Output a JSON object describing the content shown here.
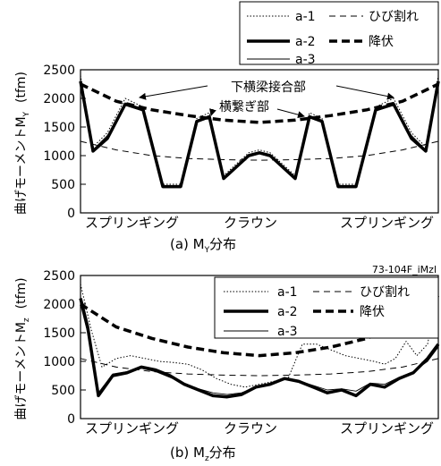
{
  "figure_id": "73-104F_iMzl",
  "chart_data": [
    {
      "type": "line",
      "caption": {
        "prefix": "(a) M",
        "sub": "Y",
        "suffix": "分布"
      },
      "ylabel": {
        "main": "曲げモーメントM",
        "sub": "Y",
        "unit": "(tfm)"
      },
      "ylim": [
        0,
        2500
      ],
      "y_ticks": [
        "0",
        "500",
        "1000",
        "1500",
        "2000",
        "2500"
      ],
      "x_categories": [
        "スプリンギング",
        "クラウン",
        "スプリンギング"
      ],
      "xlim": [
        0,
        1
      ],
      "grid": false,
      "legend_placement": "top-right",
      "annotations": [
        "下横梁接合部",
        "横繋ぎ部"
      ],
      "series": [
        {
          "name": "a-1",
          "style": "dotted",
          "x": [
            0,
            0.035,
            0.075,
            0.125,
            0.175,
            0.23,
            0.28,
            0.325,
            0.36,
            0.4,
            0.47,
            0.5,
            0.53,
            0.6,
            0.64,
            0.675,
            0.72,
            0.77,
            0.825,
            0.875,
            0.925,
            0.965,
            1.0
          ],
          "y": [
            2400,
            1150,
            1400,
            2000,
            1850,
            500,
            500,
            1650,
            1750,
            650,
            1050,
            1100,
            1050,
            650,
            1750,
            1650,
            500,
            500,
            1850,
            2000,
            1400,
            1150,
            2400
          ]
        },
        {
          "name": "a-2",
          "style": "thick-solid",
          "x": [
            0,
            0.035,
            0.075,
            0.125,
            0.175,
            0.23,
            0.28,
            0.325,
            0.36,
            0.4,
            0.47,
            0.5,
            0.53,
            0.6,
            0.64,
            0.675,
            0.72,
            0.77,
            0.825,
            0.875,
            0.925,
            0.965,
            1.0
          ],
          "y": [
            2300,
            1080,
            1300,
            1900,
            1800,
            460,
            460,
            1600,
            1680,
            600,
            1000,
            1050,
            1000,
            600,
            1680,
            1600,
            460,
            460,
            1800,
            1900,
            1300,
            1080,
            2300
          ]
        },
        {
          "name": "a-3",
          "style": "thin-solid",
          "x": [
            0,
            0.035,
            0.075,
            0.125,
            0.175,
            0.23,
            0.28,
            0.325,
            0.36,
            0.4,
            0.47,
            0.5,
            0.53,
            0.6,
            0.64,
            0.675,
            0.72,
            0.77,
            0.825,
            0.875,
            0.925,
            0.965,
            1.0
          ],
          "y": [
            2250,
            1100,
            1350,
            1880,
            1780,
            440,
            440,
            1580,
            1660,
            620,
            980,
            1030,
            980,
            620,
            1660,
            1580,
            440,
            440,
            1780,
            1880,
            1350,
            1100,
            2250
          ]
        },
        {
          "name": "ひび割れ",
          "style": "dashed",
          "x": [
            0,
            0.1,
            0.2,
            0.3,
            0.4,
            0.5,
            0.6,
            0.7,
            0.8,
            0.9,
            1.0
          ],
          "y": [
            1250,
            1100,
            1000,
            950,
            930,
            920,
            930,
            950,
            1000,
            1100,
            1250
          ]
        },
        {
          "name": "降伏",
          "style": "thick-dashed",
          "x": [
            0,
            0.1,
            0.2,
            0.3,
            0.4,
            0.5,
            0.6,
            0.7,
            0.8,
            0.9,
            1.0
          ],
          "y": [
            2250,
            1950,
            1800,
            1700,
            1620,
            1580,
            1620,
            1700,
            1800,
            1950,
            2250
          ]
        }
      ]
    },
    {
      "type": "line",
      "caption": {
        "prefix": "(b) M",
        "sub": "z",
        "suffix": "分布"
      },
      "ylabel": {
        "main": "曲げモーメントM",
        "sub": "z",
        "unit": "(tfm)"
      },
      "ylim": [
        0,
        2500
      ],
      "y_ticks": [
        "0",
        "500",
        "1000",
        "1500",
        "2000",
        "2500"
      ],
      "x_categories": [
        "スプリンギング",
        "クラウン",
        "スプリンギング"
      ],
      "xlim": [
        0,
        1
      ],
      "grid": false,
      "legend_placement": "top-center",
      "series": [
        {
          "name": "a-1",
          "style": "dotted",
          "x": [
            0,
            0.03,
            0.06,
            0.1,
            0.14,
            0.18,
            0.22,
            0.26,
            0.3,
            0.34,
            0.38,
            0.42,
            0.46,
            0.5,
            0.54,
            0.58,
            0.62,
            0.66,
            0.7,
            0.74,
            0.78,
            0.82,
            0.85,
            0.88,
            0.91,
            0.94,
            0.97,
            1.0
          ],
          "y": [
            2350,
            1550,
            900,
            1050,
            1100,
            1050,
            1000,
            980,
            950,
            850,
            700,
            600,
            550,
            600,
            650,
            700,
            1300,
            1300,
            1200,
            1100,
            1050,
            1000,
            950,
            1050,
            1350,
            1100,
            1300,
            2300
          ]
        },
        {
          "name": "a-2",
          "style": "thick-solid",
          "x": [
            0,
            0.02,
            0.05,
            0.09,
            0.13,
            0.17,
            0.21,
            0.25,
            0.29,
            0.33,
            0.37,
            0.41,
            0.45,
            0.49,
            0.53,
            0.57,
            0.61,
            0.65,
            0.69,
            0.73,
            0.77,
            0.81,
            0.85,
            0.89,
            0.93,
            0.97,
            1.0
          ],
          "y": [
            2100,
            1600,
            400,
            750,
            800,
            900,
            850,
            750,
            600,
            500,
            400,
            380,
            420,
            550,
            600,
            700,
            650,
            550,
            450,
            500,
            400,
            600,
            550,
            700,
            800,
            1050,
            1300
          ]
        },
        {
          "name": "a-3",
          "style": "thin-solid",
          "x": [
            0,
            0.02,
            0.05,
            0.09,
            0.13,
            0.17,
            0.21,
            0.25,
            0.29,
            0.33,
            0.37,
            0.41,
            0.45,
            0.49,
            0.53,
            0.57,
            0.61,
            0.65,
            0.69,
            0.73,
            0.77,
            0.81,
            0.85,
            0.89,
            0.93,
            0.97,
            1.0
          ],
          "y": [
            2000,
            1500,
            450,
            780,
            820,
            880,
            820,
            720,
            620,
            520,
            450,
            420,
            450,
            550,
            620,
            700,
            660,
            580,
            500,
            520,
            480,
            620,
            600,
            720,
            820,
            1000,
            1250
          ]
        },
        {
          "name": "ひび割れ",
          "style": "dashed",
          "x": [
            0,
            0.1,
            0.2,
            0.3,
            0.4,
            0.5,
            0.6,
            0.7,
            0.8,
            0.9,
            1.0
          ],
          "y": [
            1050,
            900,
            820,
            780,
            760,
            750,
            760,
            780,
            820,
            900,
            1050
          ]
        },
        {
          "name": "降伏",
          "style": "thick-dashed",
          "x": [
            0,
            0.1,
            0.2,
            0.3,
            0.4,
            0.5,
            0.6,
            0.7,
            0.8,
            0.9,
            1.0
          ],
          "y": [
            2000,
            1600,
            1400,
            1250,
            1150,
            1100,
            1150,
            1250,
            1400,
            1650,
            2150
          ]
        }
      ]
    }
  ]
}
